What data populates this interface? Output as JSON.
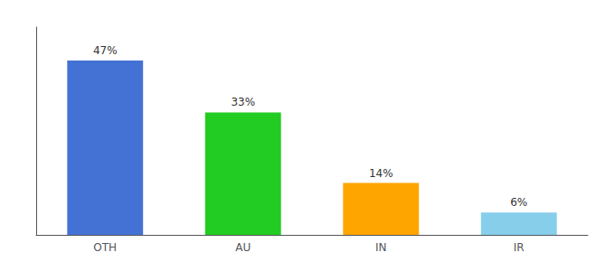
{
  "chart_data": {
    "type": "bar",
    "categories": [
      "OTH",
      "AU",
      "IN",
      "IR"
    ],
    "values": [
      47,
      33,
      14,
      6
    ],
    "value_labels": [
      "47%",
      "33%",
      "14%",
      "6%"
    ],
    "colors": [
      "#4472D4",
      "#22CC22",
      "#FFA500",
      "#87CEEB"
    ],
    "ylim": [
      0,
      56
    ],
    "grid": false,
    "data_labels": true,
    "tick_labels": "x"
  }
}
